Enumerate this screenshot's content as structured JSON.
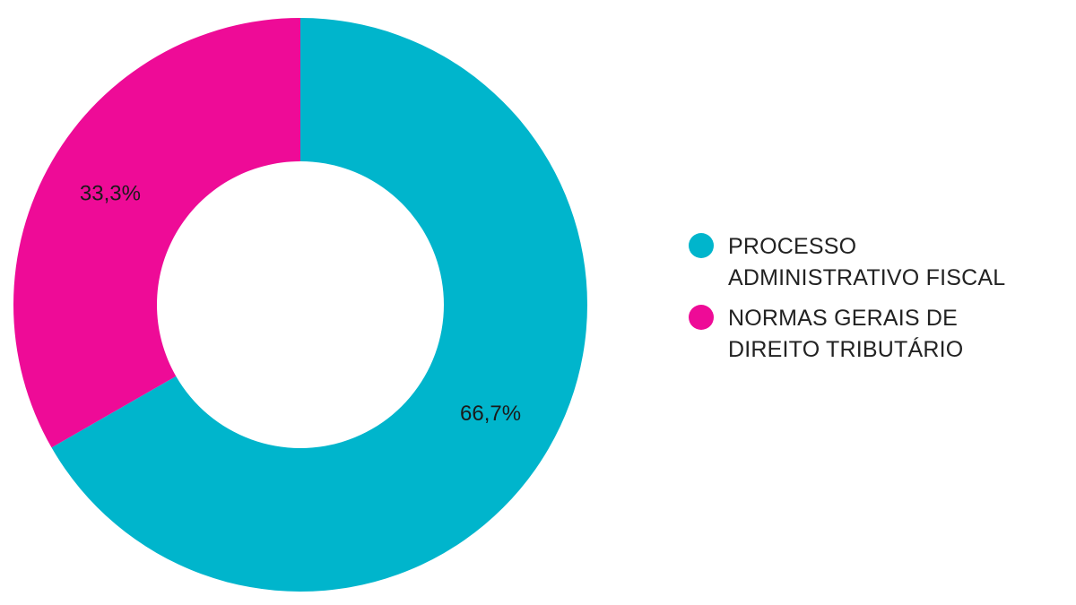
{
  "chart_data": {
    "type": "pie",
    "donut": true,
    "title": "",
    "categories": [
      "PROCESSO ADMINISTRATIVO FISCAL",
      "NORMAS GERAIS DE DIREITO TRIBUTÁRIO"
    ],
    "legend_labels": [
      "PROCESSO\nADMINISTRATIVO FISCAL",
      "NORMAS GERAIS DE\nDIREITO TRIBUTÁRIO"
    ],
    "values": [
      66.7,
      33.3
    ],
    "value_labels": [
      "66,7%",
      "33,3%"
    ],
    "colors": [
      "#00b5cc",
      "#ee0b97"
    ],
    "legend_position": "right"
  }
}
